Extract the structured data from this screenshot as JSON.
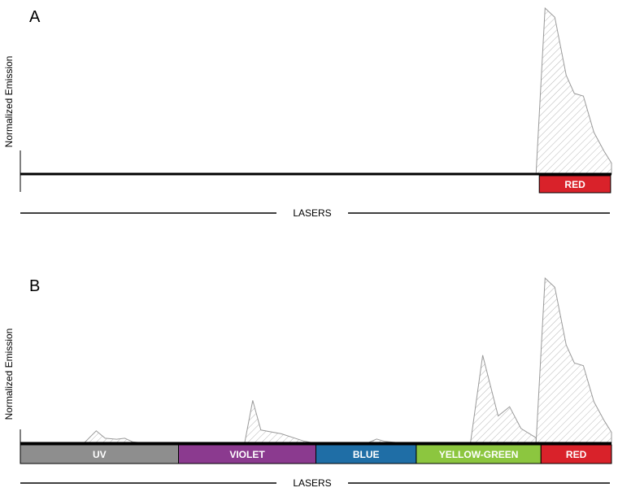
{
  "chart_data": [
    {
      "type": "area",
      "panel": "A",
      "ylabel": "Normalized Emission",
      "xlabel": "LASERS",
      "xlim": [
        0,
        1
      ],
      "ylim": [
        0,
        1
      ],
      "grid": false,
      "bands": [
        {
          "label": "RED",
          "start": 0.8779,
          "end": 0.9986,
          "color": "#d9222a"
        }
      ],
      "series": [
        {
          "x": [
            0.8724,
            0.8876,
            0.9041,
            0.9234,
            0.9372,
            0.9524,
            0.9703,
            0.9876,
            1.0
          ],
          "y": [
            0.0,
            1.0,
            0.945,
            0.595,
            0.486,
            0.47,
            0.251,
            0.137,
            0.066
          ]
        }
      ]
    },
    {
      "type": "area",
      "panel": "B",
      "ylabel": "Normalized Emission",
      "xlabel": "LASERS",
      "xlim": [
        0,
        1
      ],
      "ylim": [
        0,
        1
      ],
      "grid": false,
      "bands": [
        {
          "label": "UV",
          "start": 0.0,
          "end": 0.2676,
          "color": "#8e8e8e"
        },
        {
          "label": "VIOLET",
          "start": 0.2676,
          "end": 0.5,
          "color": "#8b3a8f"
        },
        {
          "label": "BLUE",
          "start": 0.5,
          "end": 0.6697,
          "color": "#1f6ea6"
        },
        {
          "label": "YELLOW-GREEN",
          "start": 0.6697,
          "end": 0.8807,
          "color": "#8cc63f"
        },
        {
          "label": "RED",
          "start": 0.8807,
          "end": 1.0,
          "color": "#d9222a"
        }
      ],
      "series": [
        {
          "x": [
            0.1076,
            0.1283,
            0.1434,
            0.1628,
            0.1766,
            0.1903,
            0.2124
          ],
          "y": [
            0.0,
            0.075,
            0.03,
            0.024,
            0.03,
            0.008,
            0.0
          ]
        },
        {
          "x": [
            0.3793,
            0.3931,
            0.4069,
            0.4414,
            0.4786,
            0.4979
          ],
          "y": [
            0.0,
            0.259,
            0.08,
            0.057,
            0.014,
            0.0
          ]
        },
        {
          "x": [
            0.5862,
            0.6028,
            0.6166,
            0.6345,
            0.6579
          ],
          "y": [
            0.0,
            0.025,
            0.011,
            0.005,
            0.0
          ]
        },
        {
          "x": [
            0.7614,
            0.7821,
            0.8083,
            0.8276,
            0.8469,
            0.8724
          ],
          "y": [
            0.0,
            0.533,
            0.165,
            0.221,
            0.089,
            0.033
          ]
        },
        {
          "x": [
            0.8724,
            0.8876,
            0.9041,
            0.9234,
            0.9372,
            0.9524,
            0.9703,
            0.9876,
            1.0
          ],
          "y": [
            0.0,
            1.0,
            0.945,
            0.595,
            0.486,
            0.47,
            0.251,
            0.137,
            0.066
          ]
        }
      ]
    }
  ]
}
